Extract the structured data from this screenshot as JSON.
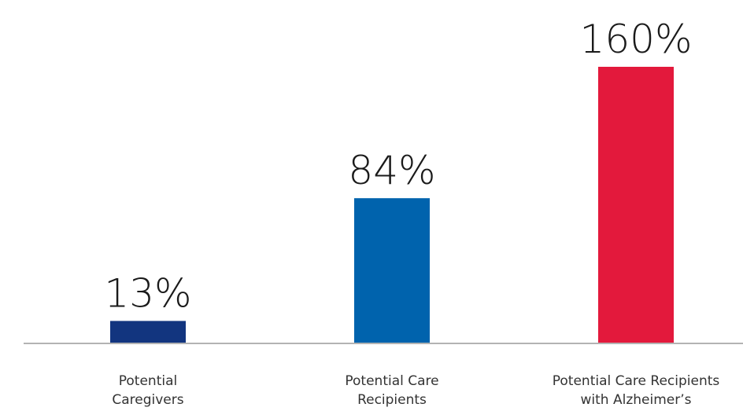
{
  "chart_data": {
    "type": "bar",
    "categories": [
      [
        "Potential",
        "Caregivers"
      ],
      [
        "Potential Care",
        "Recipients"
      ],
      [
        "Potential Care Recipients",
        "with Alzheimer’s"
      ]
    ],
    "values": [
      13,
      84,
      160
    ],
    "value_labels": [
      "13%",
      "84%",
      "160%"
    ],
    "colors": [
      "#12357f",
      "#0063ad",
      "#e3193c"
    ],
    "axis_color": "#b3b3b3",
    "grid": false,
    "legend": "none",
    "ylim": [
      0,
      160
    ]
  }
}
